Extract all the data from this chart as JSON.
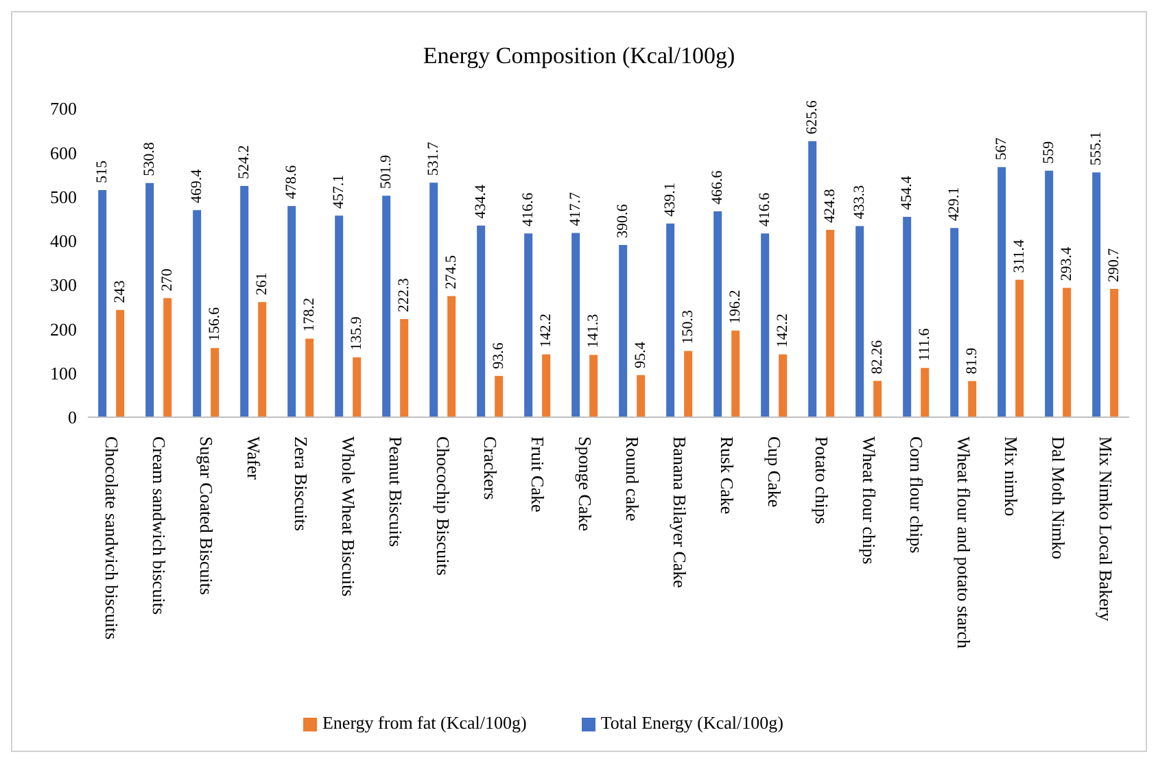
{
  "chart_data": {
    "type": "bar",
    "title": "Energy Composition  (Kcal/100g)",
    "categories": [
      "Chocolate sandwich biscuits",
      "Cream sandwich biscuits",
      "Sugar Coated Biscuits",
      "Wafer",
      "Zera Biscuits",
      "Whole Wheat Biscuits",
      "Peanut Biscuits",
      "Chocochip Biscuits",
      "Crackers",
      "Fruit Cake",
      "Sponge Cake",
      "Round cake",
      "Banana Bilayer Cake",
      "Rusk Cake",
      "Cup Cake",
      "Potato chips",
      "Wheat flour chips",
      "Corn flour chips",
      "Wheat flour and potato starch",
      "Mix nimko",
      "Dal Moth Nimko",
      "Mix Nimko Local Bakery"
    ],
    "series": [
      {
        "name": "Total Energy (Kcal/100g)",
        "color": "#4472c4",
        "values": [
          515,
          530.8,
          469.4,
          524.2,
          478.6,
          457.1,
          501.9,
          531.7,
          434.4,
          416.6,
          417.7,
          390.6,
          439.1,
          466.6,
          416.6,
          625.6,
          433.3,
          454.4,
          429.1,
          567,
          559,
          555.1
        ]
      },
      {
        "name": "Energy from fat (Kcal/100g)",
        "color": "#ed7d31",
        "values": [
          243,
          270,
          156.6,
          261,
          178.2,
          135.9,
          222.3,
          274.5,
          93.6,
          142.2,
          141.3,
          95.4,
          150.3,
          196.2,
          142.2,
          424.8,
          82.26,
          111.6,
          81.9,
          311.4,
          293.4,
          290.7
        ]
      }
    ],
    "ylim": [
      0,
      700
    ],
    "yticks": [
      0,
      100,
      200,
      300,
      400,
      500,
      600,
      700
    ],
    "data_labels": true,
    "legend": "bottom",
    "grid": false
  }
}
